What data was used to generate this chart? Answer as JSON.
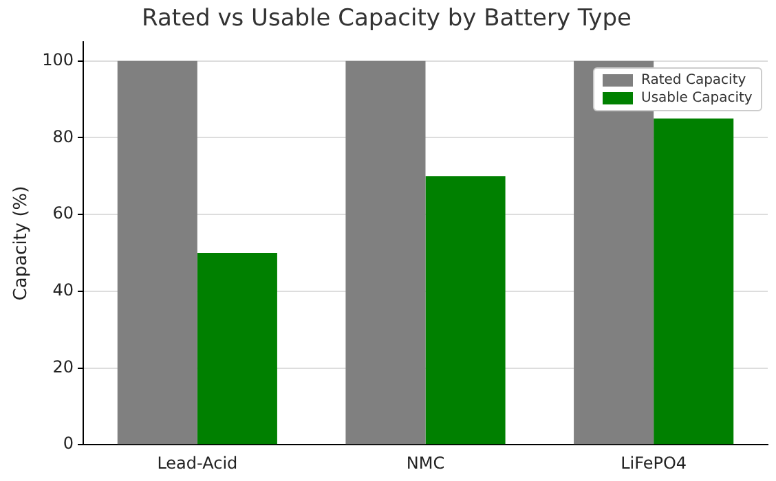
{
  "chart_data": {
    "type": "bar",
    "title": "Rated vs Usable Capacity by Battery Type",
    "ylabel": "Capacity (%)",
    "categories": [
      "Lead-Acid",
      "NMC",
      "LiFePO4"
    ],
    "series": [
      {
        "name": "Rated Capacity",
        "color": "#808080",
        "values": [
          100,
          100,
          100
        ]
      },
      {
        "name": "Usable Capacity",
        "color": "#008000",
        "values": [
          50,
          70,
          85
        ]
      }
    ],
    "ylim": [
      0,
      105
    ],
    "yticks": [
      0,
      20,
      40,
      60,
      80,
      100
    ],
    "grid": "y",
    "legend": "top right"
  }
}
